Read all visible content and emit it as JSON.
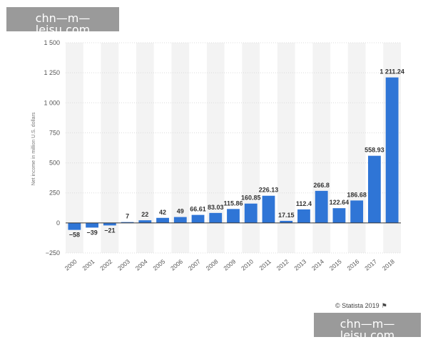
{
  "watermark_top": "chn—m—leisu.com",
  "watermark_bottom": "chn—m—leisu.com",
  "credit": "© Statista 2019",
  "colors": {
    "bar": "#2f75d6",
    "grid": "#dcdcdc",
    "zero": "#333333",
    "band": "#f3f3f3"
  },
  "chart_data": {
    "type": "bar",
    "title": "",
    "xlabel": "",
    "ylabel": "Net income in million U.S. dollars",
    "ylim": [
      -250,
      1500
    ],
    "yticks": [
      -250,
      0,
      250,
      500,
      750,
      1000,
      1250,
      1500
    ],
    "ytick_labels": [
      "−250",
      "0",
      "250",
      "500",
      "750",
      "1 000",
      "1 250",
      "1 500"
    ],
    "categories": [
      "2000",
      "2001",
      "2002",
      "2003",
      "2004",
      "2005",
      "2006",
      "2007",
      "2008",
      "2009",
      "2010",
      "2011",
      "2012",
      "2013",
      "2014",
      "2015",
      "2016",
      "2017",
      "2018"
    ],
    "values": [
      -58,
      -39,
      -21,
      7,
      22,
      42,
      49,
      66.61,
      83.03,
      115.86,
      160.85,
      226.13,
      17.15,
      112.4,
      266.8,
      122.64,
      186.68,
      558.93,
      1211.24
    ],
    "labels": [
      "−58",
      "−39",
      "−21",
      "7",
      "22",
      "42",
      "49",
      "66.61",
      "83.03",
      "115.86",
      "160.85",
      "226.13",
      "17.15",
      "112.4",
      "266.8",
      "122.64",
      "186.68",
      "558.93",
      "1 211.24"
    ]
  }
}
